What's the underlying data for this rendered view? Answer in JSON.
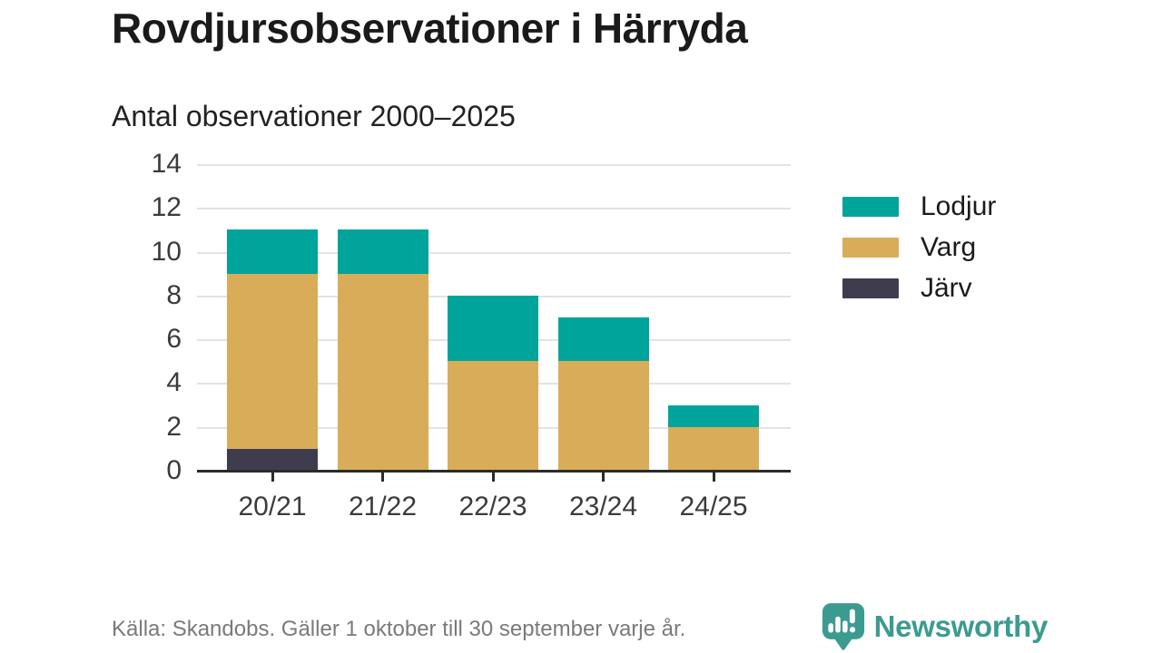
{
  "header": {
    "title": "Rovdjursobservationer i Härryda",
    "subtitle": "Antal observationer 2000–2025"
  },
  "footer": {
    "source": "Källa: Skandobs. Gäller 1 oktober till 30 september varje år.",
    "brand": "Newsworthy"
  },
  "colors": {
    "lodjur": "#00a49a",
    "varg": "#d9ac59",
    "jarv": "#3f3d4d",
    "grid": "#e3e3e3",
    "axis": "#2b2b2b",
    "brand_teal": "#3c9b91"
  },
  "chart_data": {
    "type": "bar",
    "stacked": true,
    "title": "Rovdjursobservationer i Härryda",
    "subtitle": "Antal observationer 2000–2025",
    "categories": [
      "20/21",
      "21/22",
      "22/23",
      "23/24",
      "24/25"
    ],
    "series": [
      {
        "name": "Lodjur",
        "color": "#00a49a",
        "values": [
          2,
          2,
          3,
          2,
          1
        ]
      },
      {
        "name": "Varg",
        "color": "#d9ac59",
        "values": [
          8,
          9,
          5,
          5,
          2
        ]
      },
      {
        "name": "Järv",
        "color": "#3f3d4d",
        "values": [
          1,
          0,
          0,
          0,
          0
        ]
      }
    ],
    "stack_bottom_to_top": [
      "Järv",
      "Varg",
      "Lodjur"
    ],
    "totals": [
      11,
      11,
      8,
      7,
      3
    ],
    "ylim": [
      0,
      14
    ],
    "ytick_step": 2,
    "yticks": [
      0,
      2,
      4,
      6,
      8,
      10,
      12,
      14
    ],
    "grid": true,
    "legend_position": "right",
    "xlabel": "",
    "ylabel": ""
  }
}
